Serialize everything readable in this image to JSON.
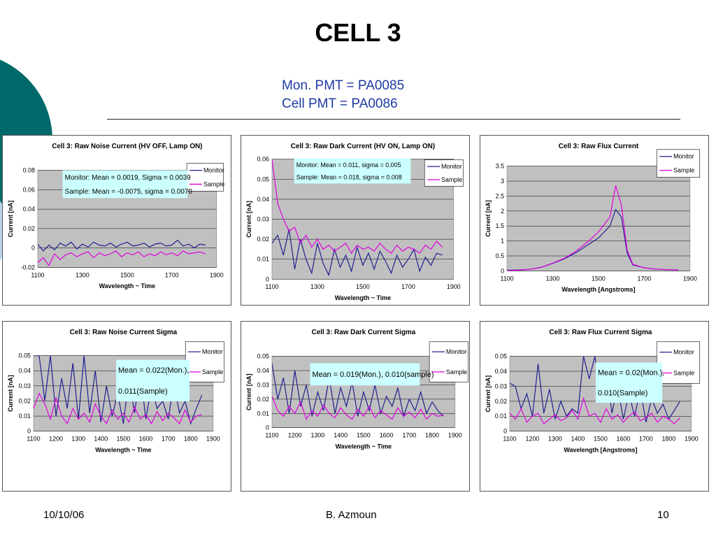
{
  "title": "CELL 3",
  "subtitle_lines": [
    "Mon. PMT =  PA0085",
    "Cell PMT = PA0086"
  ],
  "footer": {
    "date": "10/10/06",
    "author": "B. Azmoun",
    "page": "10"
  },
  "colors": {
    "monitor": "#1f1f8f",
    "sample": "#e000e0",
    "plot_bg": "#c0c0c0",
    "stats_box": "#ccffff",
    "decor": "#006a6a"
  },
  "chart_data": [
    {
      "type": "line",
      "title": "Cell 3: Raw Noise Current (HV OFF, Lamp ON)",
      "xlabel": "Wavelength ~ Time",
      "ylabel": "Current [nA]",
      "xlim": [
        1100,
        1900
      ],
      "ylim": [
        -0.02,
        0.08
      ],
      "xticks": [
        "1100",
        "1300",
        "1500",
        "1700",
        "1900"
      ],
      "yticks": [
        "-0.02",
        "0",
        "0.02",
        "0.04",
        "0.06",
        "0.08"
      ],
      "annotation": [
        "Monitor:  Mean = 0.0019, Sigma = 0.0039",
        "Sample:  Mean = -0.0075, sigma = 0.0070"
      ],
      "legend": "top-right",
      "series": [
        {
          "name": "Monitor",
          "x": [
            1100,
            1125,
            1150,
            1175,
            1200,
            1225,
            1250,
            1275,
            1300,
            1325,
            1350,
            1375,
            1400,
            1425,
            1450,
            1475,
            1500,
            1525,
            1550,
            1575,
            1600,
            1625,
            1650,
            1675,
            1700,
            1725,
            1750,
            1775,
            1800,
            1825,
            1850
          ],
          "values": [
            0.004,
            -0.003,
            0.003,
            -0.002,
            0.005,
            0.002,
            0.006,
            -0.001,
            0.004,
            0.001,
            0.006,
            0.003,
            0.002,
            0.005,
            0.001,
            0.004,
            0.006,
            0.002,
            0.003,
            0.005,
            0.001,
            0.004,
            0.005,
            0.002,
            0.003,
            0.008,
            0.002,
            0.004,
            0.0,
            0.004,
            0.003
          ]
        },
        {
          "name": "Sample",
          "x": [
            1100,
            1125,
            1150,
            1175,
            1200,
            1225,
            1250,
            1275,
            1300,
            1325,
            1350,
            1375,
            1400,
            1425,
            1450,
            1475,
            1500,
            1525,
            1550,
            1575,
            1600,
            1625,
            1650,
            1675,
            1700,
            1725,
            1750,
            1775,
            1800,
            1825,
            1850
          ],
          "values": [
            -0.015,
            -0.01,
            -0.018,
            -0.006,
            -0.012,
            -0.007,
            -0.005,
            -0.009,
            -0.006,
            -0.004,
            -0.01,
            -0.005,
            -0.008,
            -0.006,
            -0.003,
            -0.009,
            -0.005,
            -0.007,
            -0.004,
            -0.009,
            -0.006,
            -0.008,
            -0.004,
            -0.007,
            -0.005,
            -0.008,
            -0.003,
            -0.006,
            -0.005,
            -0.004,
            -0.006
          ]
        }
      ]
    },
    {
      "type": "line",
      "title": "Cell 3: Raw Dark Current (HV ON, Lamp ON)",
      "xlabel": "Wavelength ~ Time",
      "ylabel": "Current [nA]",
      "xlim": [
        1100,
        1900
      ],
      "ylim": [
        0,
        0.06
      ],
      "xticks": [
        "1100",
        "1300",
        "1500",
        "1700",
        "1900"
      ],
      "yticks": [
        "0",
        "0.01",
        "0.02",
        "0.03",
        "0.04",
        "0.05",
        "0.06"
      ],
      "annotation": [
        "Monitor: Mean = 0.011, sigma = 0.005",
        "Sample: Mean = 0.018, sigma = 0.008"
      ],
      "legend": "top-right",
      "series": [
        {
          "name": "Monitor",
          "x": [
            1100,
            1125,
            1150,
            1175,
            1200,
            1225,
            1250,
            1275,
            1300,
            1325,
            1350,
            1375,
            1400,
            1425,
            1450,
            1475,
            1500,
            1525,
            1550,
            1575,
            1600,
            1625,
            1650,
            1675,
            1700,
            1725,
            1750,
            1775,
            1800,
            1825,
            1850
          ],
          "values": [
            0.018,
            0.022,
            0.012,
            0.025,
            0.005,
            0.02,
            0.01,
            0.003,
            0.018,
            0.008,
            0.002,
            0.015,
            0.006,
            0.012,
            0.004,
            0.016,
            0.007,
            0.013,
            0.005,
            0.014,
            0.009,
            0.003,
            0.012,
            0.006,
            0.01,
            0.015,
            0.004,
            0.011,
            0.007,
            0.013,
            0.012
          ]
        },
        {
          "name": "Sample",
          "x": [
            1100,
            1125,
            1150,
            1175,
            1200,
            1225,
            1250,
            1275,
            1300,
            1325,
            1350,
            1375,
            1400,
            1425,
            1450,
            1475,
            1500,
            1525,
            1550,
            1575,
            1600,
            1625,
            1650,
            1675,
            1700,
            1725,
            1750,
            1775,
            1800,
            1825,
            1850
          ],
          "values": [
            0.06,
            0.038,
            0.03,
            0.024,
            0.026,
            0.018,
            0.022,
            0.016,
            0.02,
            0.015,
            0.017,
            0.014,
            0.016,
            0.018,
            0.013,
            0.017,
            0.015,
            0.016,
            0.014,
            0.018,
            0.015,
            0.013,
            0.017,
            0.014,
            0.016,
            0.015,
            0.013,
            0.017,
            0.015,
            0.019,
            0.016
          ]
        }
      ]
    },
    {
      "type": "line",
      "title": "Cell 3: Raw Flux Current",
      "xlabel": "Wavelength [Angstroms]",
      "ylabel": "Current [nA]",
      "xlim": [
        1100,
        1900
      ],
      "ylim": [
        0,
        3.5
      ],
      "xticks": [
        "1100",
        "1300",
        "1500",
        "1700",
        "1900"
      ],
      "yticks": [
        "0",
        "0.5",
        "1",
        "1.5",
        "2",
        "2.5",
        "3",
        "3.5"
      ],
      "legend": "top-right",
      "series": [
        {
          "name": "Monitor",
          "x": [
            1100,
            1150,
            1200,
            1250,
            1300,
            1350,
            1400,
            1450,
            1500,
            1550,
            1575,
            1600,
            1625,
            1650,
            1700,
            1750,
            1800,
            1850
          ],
          "values": [
            0.02,
            0.03,
            0.05,
            0.12,
            0.25,
            0.4,
            0.6,
            0.85,
            1.1,
            1.5,
            2.05,
            1.8,
            0.6,
            0.2,
            0.1,
            0.06,
            0.04,
            0.03
          ]
        },
        {
          "name": "Sample",
          "x": [
            1100,
            1150,
            1200,
            1250,
            1300,
            1350,
            1400,
            1450,
            1500,
            1550,
            1575,
            1600,
            1625,
            1650,
            1700,
            1750,
            1800,
            1850
          ],
          "values": [
            0.01,
            0.02,
            0.05,
            0.12,
            0.26,
            0.42,
            0.65,
            0.95,
            1.3,
            1.8,
            2.85,
            2.2,
            0.7,
            0.22,
            0.1,
            0.06,
            0.04,
            0.03
          ]
        }
      ]
    },
    {
      "type": "line",
      "title": "Cell 3: Raw Noise Current Sigma",
      "xlabel": "Wavelength ~ Time",
      "ylabel": "Current [nA]",
      "xlim": [
        1100,
        1900
      ],
      "ylim": [
        0,
        0.05
      ],
      "xticks": [
        "1100",
        "1200",
        "1300",
        "1400",
        "1500",
        "1600",
        "1700",
        "1800",
        "1900"
      ],
      "yticks": [
        "0",
        "0.01",
        "0.02",
        "0.03",
        "0.04",
        "0.05"
      ],
      "annotation": [
        "Mean = 0.022(Mon.),",
        "0.011(Sample)"
      ],
      "legend": "top-right",
      "series": [
        {
          "name": "Monitor",
          "x": [
            1100,
            1125,
            1150,
            1175,
            1200,
            1225,
            1250,
            1275,
            1300,
            1325,
            1350,
            1375,
            1400,
            1425,
            1450,
            1475,
            1500,
            1525,
            1550,
            1575,
            1600,
            1625,
            1650,
            1675,
            1700,
            1725,
            1750,
            1775,
            1800,
            1825,
            1850
          ],
          "values": [
            0.05,
            0.05,
            0.02,
            0.05,
            0.01,
            0.035,
            0.015,
            0.045,
            0.008,
            0.05,
            0.012,
            0.04,
            0.006,
            0.03,
            0.01,
            0.025,
            0.005,
            0.035,
            0.012,
            0.04,
            0.008,
            0.03,
            0.015,
            0.02,
            0.008,
            0.032,
            0.012,
            0.02,
            0.005,
            0.015,
            0.024
          ]
        },
        {
          "name": "Sample",
          "x": [
            1100,
            1125,
            1150,
            1175,
            1200,
            1225,
            1250,
            1275,
            1300,
            1325,
            1350,
            1375,
            1400,
            1425,
            1450,
            1475,
            1500,
            1525,
            1550,
            1575,
            1600,
            1625,
            1650,
            1675,
            1700,
            1725,
            1750,
            1775,
            1800,
            1825,
            1850
          ],
          "values": [
            0.015,
            0.025,
            0.018,
            0.008,
            0.022,
            0.01,
            0.005,
            0.015,
            0.008,
            0.012,
            0.006,
            0.018,
            0.01,
            0.005,
            0.014,
            0.008,
            0.012,
            0.006,
            0.016,
            0.008,
            0.011,
            0.005,
            0.013,
            0.007,
            0.012,
            0.009,
            0.005,
            0.014,
            0.006,
            0.01,
            0.011
          ]
        }
      ]
    },
    {
      "type": "line",
      "title": "Cell 3: Raw Dark Current Sigma",
      "xlabel": "Wavelength ~ Time",
      "ylabel": "Current [nA]",
      "xlim": [
        1100,
        1900
      ],
      "ylim": [
        0,
        0.05
      ],
      "xticks": [
        "1100",
        "1200",
        "1300",
        "1400",
        "1500",
        "1600",
        "1700",
        "1800",
        "1900"
      ],
      "yticks": [
        "0",
        "0.01",
        "0.02",
        "0.03",
        "0.04",
        "0.05"
      ],
      "annotation": [
        "Mean =  0.019(Mon.), 0.010(sample)"
      ],
      "legend": "top-right",
      "series": [
        {
          "name": "Monitor",
          "x": [
            1100,
            1125,
            1150,
            1175,
            1200,
            1225,
            1250,
            1275,
            1300,
            1325,
            1350,
            1375,
            1400,
            1425,
            1450,
            1475,
            1500,
            1525,
            1550,
            1575,
            1600,
            1625,
            1650,
            1675,
            1700,
            1725,
            1750,
            1775,
            1800,
            1825,
            1850
          ],
          "values": [
            0.045,
            0.02,
            0.035,
            0.01,
            0.04,
            0.015,
            0.03,
            0.008,
            0.025,
            0.012,
            0.035,
            0.01,
            0.028,
            0.015,
            0.032,
            0.008,
            0.025,
            0.012,
            0.03,
            0.01,
            0.022,
            0.015,
            0.028,
            0.008,
            0.02,
            0.012,
            0.025,
            0.01,
            0.018,
            0.012,
            0.008
          ]
        },
        {
          "name": "Sample",
          "x": [
            1100,
            1125,
            1150,
            1175,
            1200,
            1225,
            1250,
            1275,
            1300,
            1325,
            1350,
            1375,
            1400,
            1425,
            1450,
            1475,
            1500,
            1525,
            1550,
            1575,
            1600,
            1625,
            1650,
            1675,
            1700,
            1725,
            1750,
            1775,
            1800,
            1825,
            1850
          ],
          "values": [
            0.022,
            0.012,
            0.008,
            0.015,
            0.01,
            0.018,
            0.006,
            0.012,
            0.008,
            0.016,
            0.01,
            0.007,
            0.014,
            0.009,
            0.006,
            0.013,
            0.008,
            0.015,
            0.007,
            0.012,
            0.009,
            0.006,
            0.014,
            0.008,
            0.011,
            0.007,
            0.013,
            0.006,
            0.01,
            0.008,
            0.009
          ]
        }
      ]
    },
    {
      "type": "line",
      "title": "Cell 3: Raw Flux Current Sigma",
      "xlabel": "Wavelength [Angstroms]",
      "ylabel": "Current [nA]",
      "xlim": [
        1100,
        1900
      ],
      "ylim": [
        0,
        0.05
      ],
      "xticks": [
        "1100",
        "1200",
        "1300",
        "1400",
        "1500",
        "1600",
        "1700",
        "1800",
        "1900"
      ],
      "yticks": [
        "0",
        "0.01",
        "0.02",
        "0.03",
        "0.04",
        "0.05"
      ],
      "annotation": [
        "Mean = 0.02(Mon.),",
        "0.010(Sample)"
      ],
      "legend": "top-right",
      "series": [
        {
          "name": "Monitor",
          "x": [
            1100,
            1125,
            1150,
            1175,
            1200,
            1225,
            1250,
            1275,
            1300,
            1325,
            1350,
            1375,
            1400,
            1425,
            1450,
            1475,
            1500,
            1525,
            1550,
            1575,
            1600,
            1625,
            1650,
            1675,
            1700,
            1725,
            1750,
            1775,
            1800,
            1825,
            1850
          ],
          "values": [
            0.032,
            0.03,
            0.015,
            0.025,
            0.01,
            0.045,
            0.012,
            0.028,
            0.008,
            0.02,
            0.01,
            0.015,
            0.012,
            0.05,
            0.035,
            0.05,
            0.025,
            0.042,
            0.012,
            0.03,
            0.008,
            0.025,
            0.01,
            0.028,
            0.006,
            0.022,
            0.012,
            0.018,
            0.008,
            0.014,
            0.02
          ]
        },
        {
          "name": "Sample",
          "x": [
            1100,
            1125,
            1150,
            1175,
            1200,
            1225,
            1250,
            1275,
            1300,
            1325,
            1350,
            1375,
            1400,
            1425,
            1450,
            1475,
            1500,
            1525,
            1550,
            1575,
            1600,
            1625,
            1650,
            1675,
            1700,
            1725,
            1750,
            1775,
            1800,
            1825,
            1850
          ],
          "values": [
            0.012,
            0.008,
            0.015,
            0.006,
            0.01,
            0.012,
            0.005,
            0.008,
            0.011,
            0.007,
            0.009,
            0.014,
            0.008,
            0.022,
            0.01,
            0.012,
            0.006,
            0.015,
            0.008,
            0.011,
            0.006,
            0.01,
            0.013,
            0.007,
            0.009,
            0.012,
            0.006,
            0.01,
            0.008,
            0.005,
            0.009
          ]
        }
      ]
    }
  ]
}
